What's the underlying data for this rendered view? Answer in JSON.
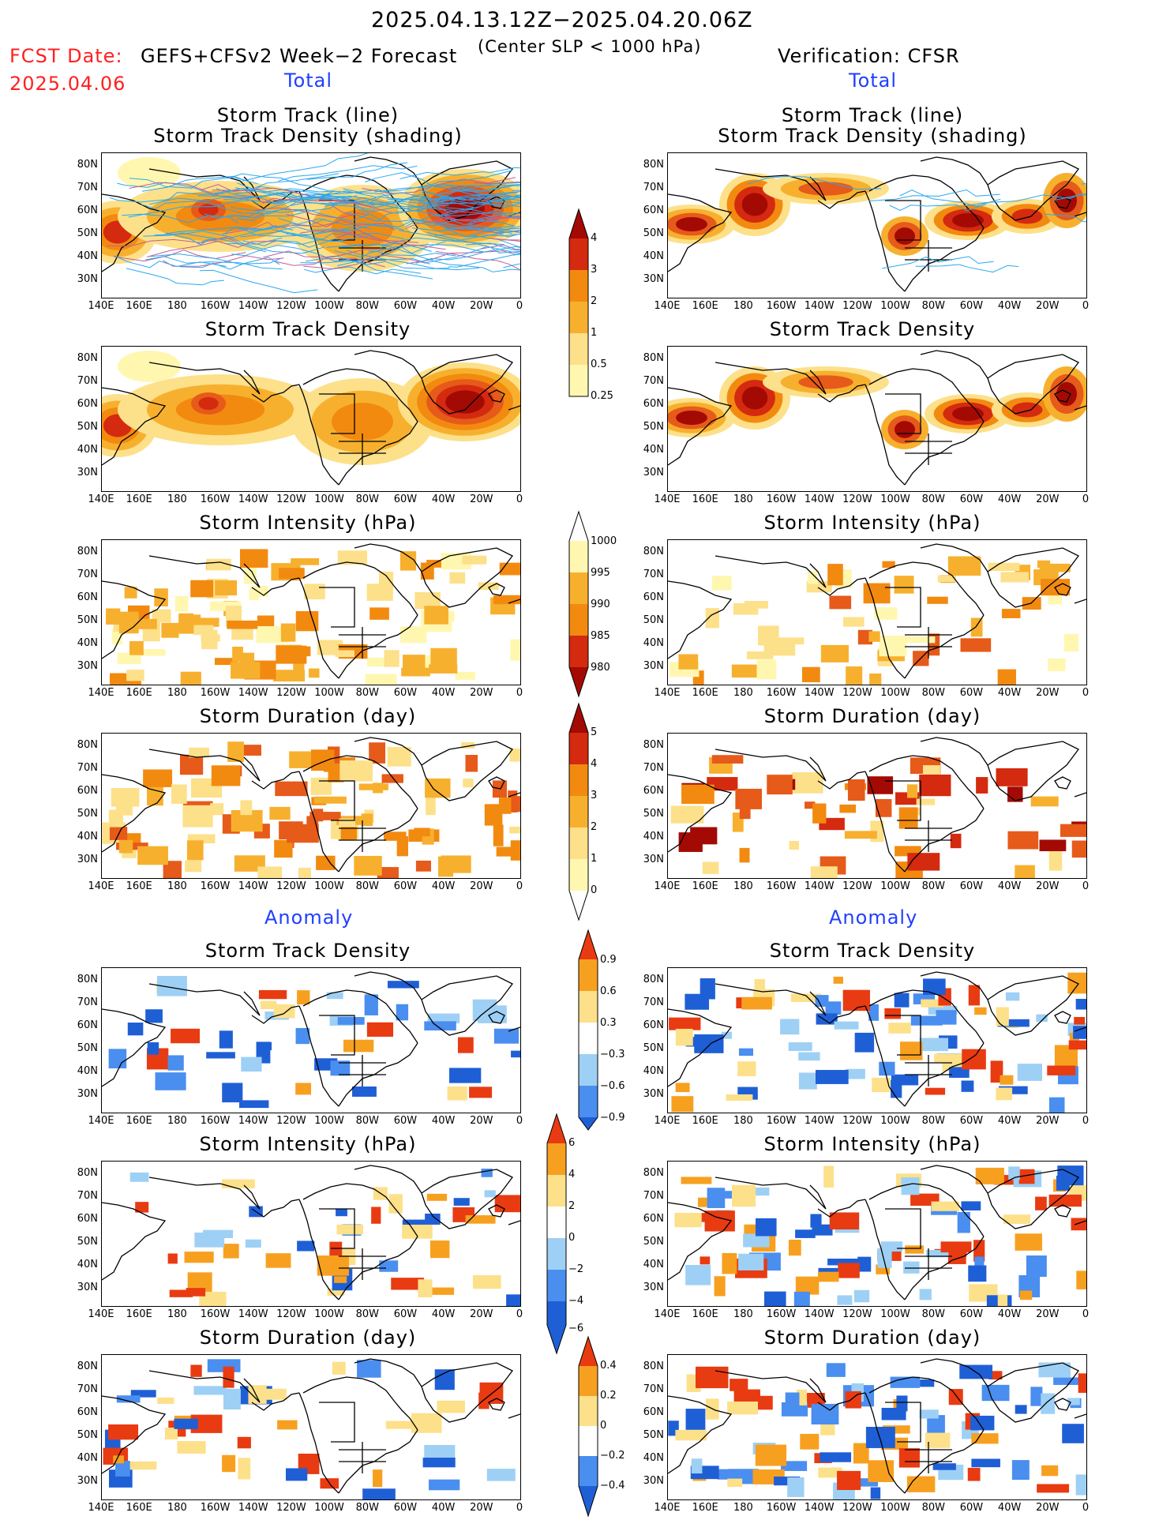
{
  "header": {
    "date_range": "2025.04.13.12Z−2025.04.20.06Z",
    "fcst_label": "FCST Date:",
    "fcst_date": "2025.04.06",
    "model": "GEFS+CFSv2 Week−2 Forecast",
    "condition": "(Center SLP < 1000 hPa)",
    "verification": "Verification: CFSR",
    "left_section_total": "Total",
    "right_section_total": "Total",
    "left_section_anomaly": "Anomaly",
    "right_section_anomaly": "Anomaly"
  },
  "panel_titles": {
    "track_line_1": "Storm Track (line)",
    "track_line_2": "Storm Track Density (shading)",
    "density": "Storm Track Density",
    "intensity": "Storm Intensity (hPa)",
    "duration": "Storm Duration (day)"
  },
  "axes": {
    "lat_labels": [
      "80N",
      "70N",
      "60N",
      "50N",
      "40N",
      "30N"
    ],
    "lon_labels": [
      "140E",
      "160E",
      "180",
      "160W",
      "140W",
      "120W",
      "100W",
      "80W",
      "60W",
      "40W",
      "20W",
      "0"
    ]
  },
  "colorbars": {
    "density_total": [
      "4",
      "3",
      "2",
      "1",
      "0.5",
      "0.25"
    ],
    "intensity_total": [
      "1000",
      "995",
      "990",
      "985",
      "980"
    ],
    "duration_total": [
      "5",
      "4",
      "3",
      "2",
      "1",
      "0"
    ],
    "density_anomaly": [
      "0.9",
      "0.6",
      "0.3",
      "−0.3",
      "−0.6",
      "−0.9"
    ],
    "intensity_anomaly": [
      "6",
      "4",
      "2",
      "0",
      "−2",
      "−4",
      "−6"
    ],
    "duration_anomaly": [
      "0.4",
      "0.2",
      "0",
      "−0.2",
      "−0.4"
    ]
  },
  "colors": {
    "warm_scale": [
      "#fff7b0",
      "#fde08a",
      "#f7b02e",
      "#f28a10",
      "#e65a1a",
      "#d42a0f",
      "#a30a04"
    ],
    "anom_scale": [
      "#1f5fd6",
      "#4a8eef",
      "#9ed0f5",
      "#ffffff",
      "#fde08a",
      "#f7a020",
      "#e83b12"
    ],
    "track_line": "#2aa8f0"
  }
}
